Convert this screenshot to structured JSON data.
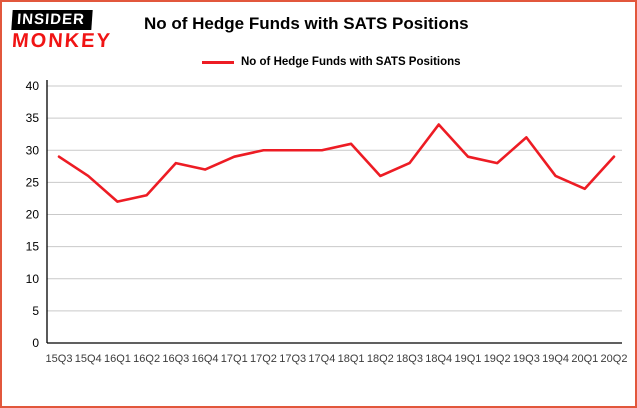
{
  "header": {
    "logo_line1": "INSIDER",
    "logo_line2": "MONKEY",
    "title": "No of Hedge Funds with SATS Positions"
  },
  "legend": {
    "label": "No of Hedge Funds with SATS Positions"
  },
  "colors": {
    "border": "#e2573c",
    "series_line": "#ed1c24",
    "gridline": "#c9c9c9",
    "axis": "#000000",
    "tick_label": "#3c3c3c"
  },
  "chart_data": {
    "type": "line",
    "title": "No of Hedge Funds with SATS Positions",
    "categories": [
      "15Q3",
      "15Q4",
      "16Q1",
      "16Q2",
      "16Q3",
      "16Q4",
      "17Q1",
      "17Q2",
      "17Q3",
      "17Q4",
      "18Q1",
      "18Q2",
      "18Q3",
      "18Q4",
      "19Q1",
      "19Q2",
      "19Q3",
      "19Q4",
      "20Q1",
      "20Q2"
    ],
    "series": [
      {
        "name": "No of Hedge Funds with SATS Positions",
        "color": "#ed1c24",
        "values": [
          29,
          26,
          22,
          23,
          28,
          27,
          29,
          30,
          30,
          30,
          31,
          26,
          28,
          34,
          29,
          28,
          32,
          26,
          24,
          29
        ]
      }
    ],
    "xlabel": "",
    "ylabel": "",
    "ylim": [
      0,
      40
    ],
    "ytick_interval": 5,
    "grid": true,
    "legend_position": "top-left"
  }
}
